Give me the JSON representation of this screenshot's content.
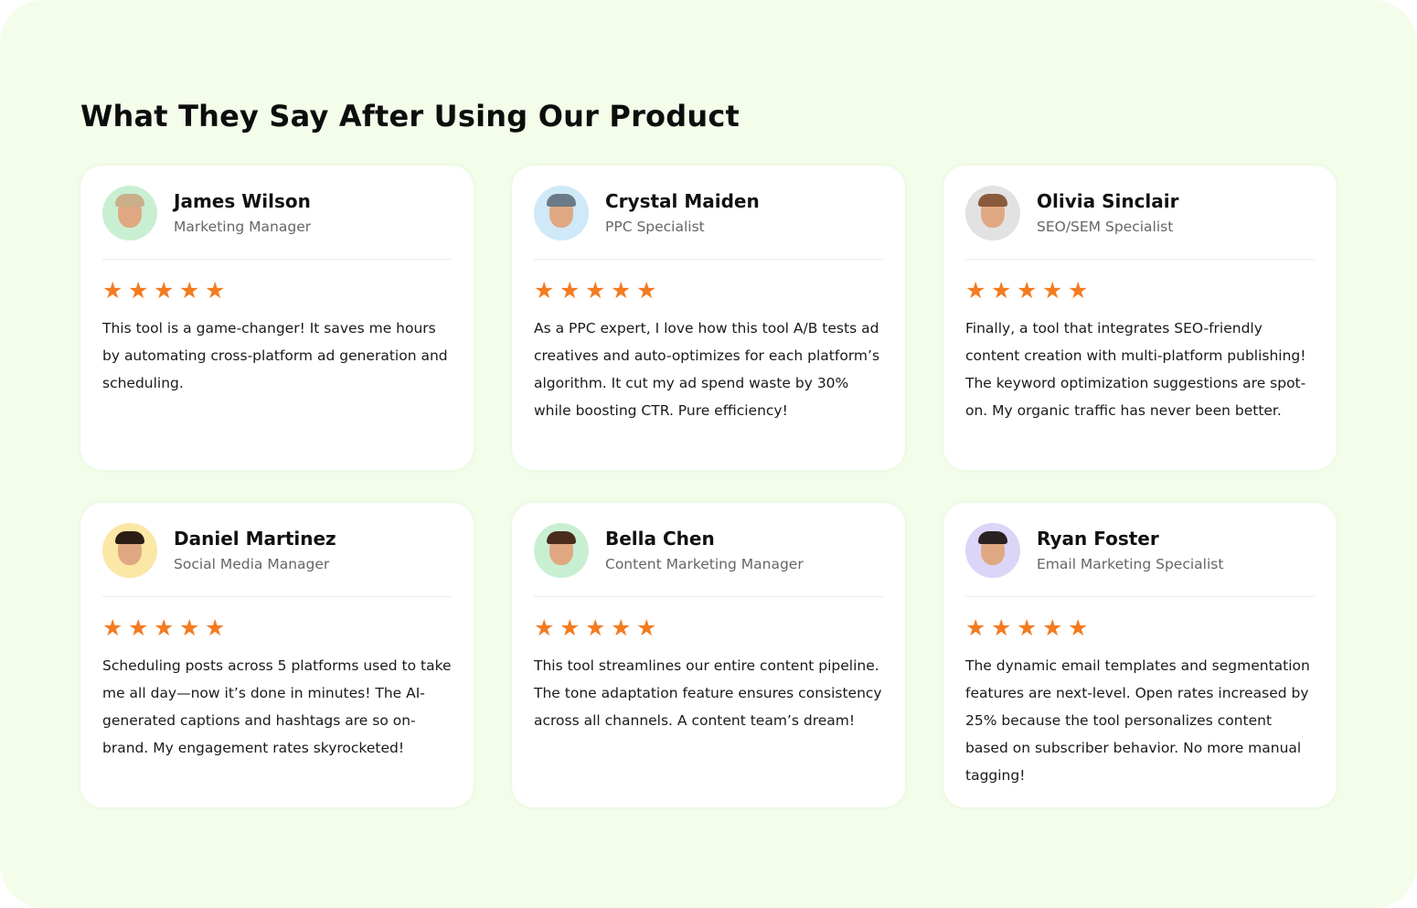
{
  "title": "What They Say After Using Our Product",
  "star_color": "#f47b20",
  "rating_max": 5,
  "testimonials": [
    {
      "name": "James Wilson",
      "role": "Marketing Manager",
      "rating": 5,
      "avatar_bg": "#c9efd2",
      "hair": "#c9b08a",
      "text": "This tool is a game-changer! It saves me hours by automating cross-platform ad generation and scheduling."
    },
    {
      "name": "Crystal Maiden",
      "role": "PPC Specialist",
      "rating": 5,
      "avatar_bg": "#cfe9f8",
      "hair": "#6b7a86",
      "text": "As a PPC expert, I love how this tool A/B tests ad creatives and auto-optimizes for each platform’s algorithm. It cut my ad spend waste by 30% while boosting CTR. Pure efficiency!"
    },
    {
      "name": "Olivia Sinclair",
      "role": "SEO/SEM Specialist",
      "rating": 5,
      "avatar_bg": "#e2e2e2",
      "hair": "#8a5a3c",
      "text": "Finally, a tool that integrates SEO-friendly content creation with multi-platform publishing! The keyword optimization suggestions are spot-on. My organic traffic has never been better."
    },
    {
      "name": "Daniel Martinez",
      "role": "Social Media Manager",
      "rating": 5,
      "avatar_bg": "#fbe7a6",
      "hair": "#2b1d14",
      "text": "Scheduling posts across 5 platforms used to take me all day—now it’s done in minutes! The AI-generated captions and hashtags are so on-brand. My engagement rates skyrocketed!"
    },
    {
      "name": "Bella Chen",
      "role": "Content Marketing Manager",
      "rating": 5,
      "avatar_bg": "#c9efd2",
      "hair": "#4a2c1c",
      "text": "This tool streamlines our entire content pipeline. The tone adaptation feature ensures consistency across all channels. A content team’s dream!"
    },
    {
      "name": "Ryan Foster",
      "role": "Email Marketing Specialist",
      "rating": 5,
      "avatar_bg": "#dcd5f8",
      "hair": "#2a2222",
      "text": "The dynamic email templates and segmentation features are next-level. Open rates increased by 25% because the tool personalizes content based on subscriber behavior. No more manual tagging!"
    }
  ]
}
